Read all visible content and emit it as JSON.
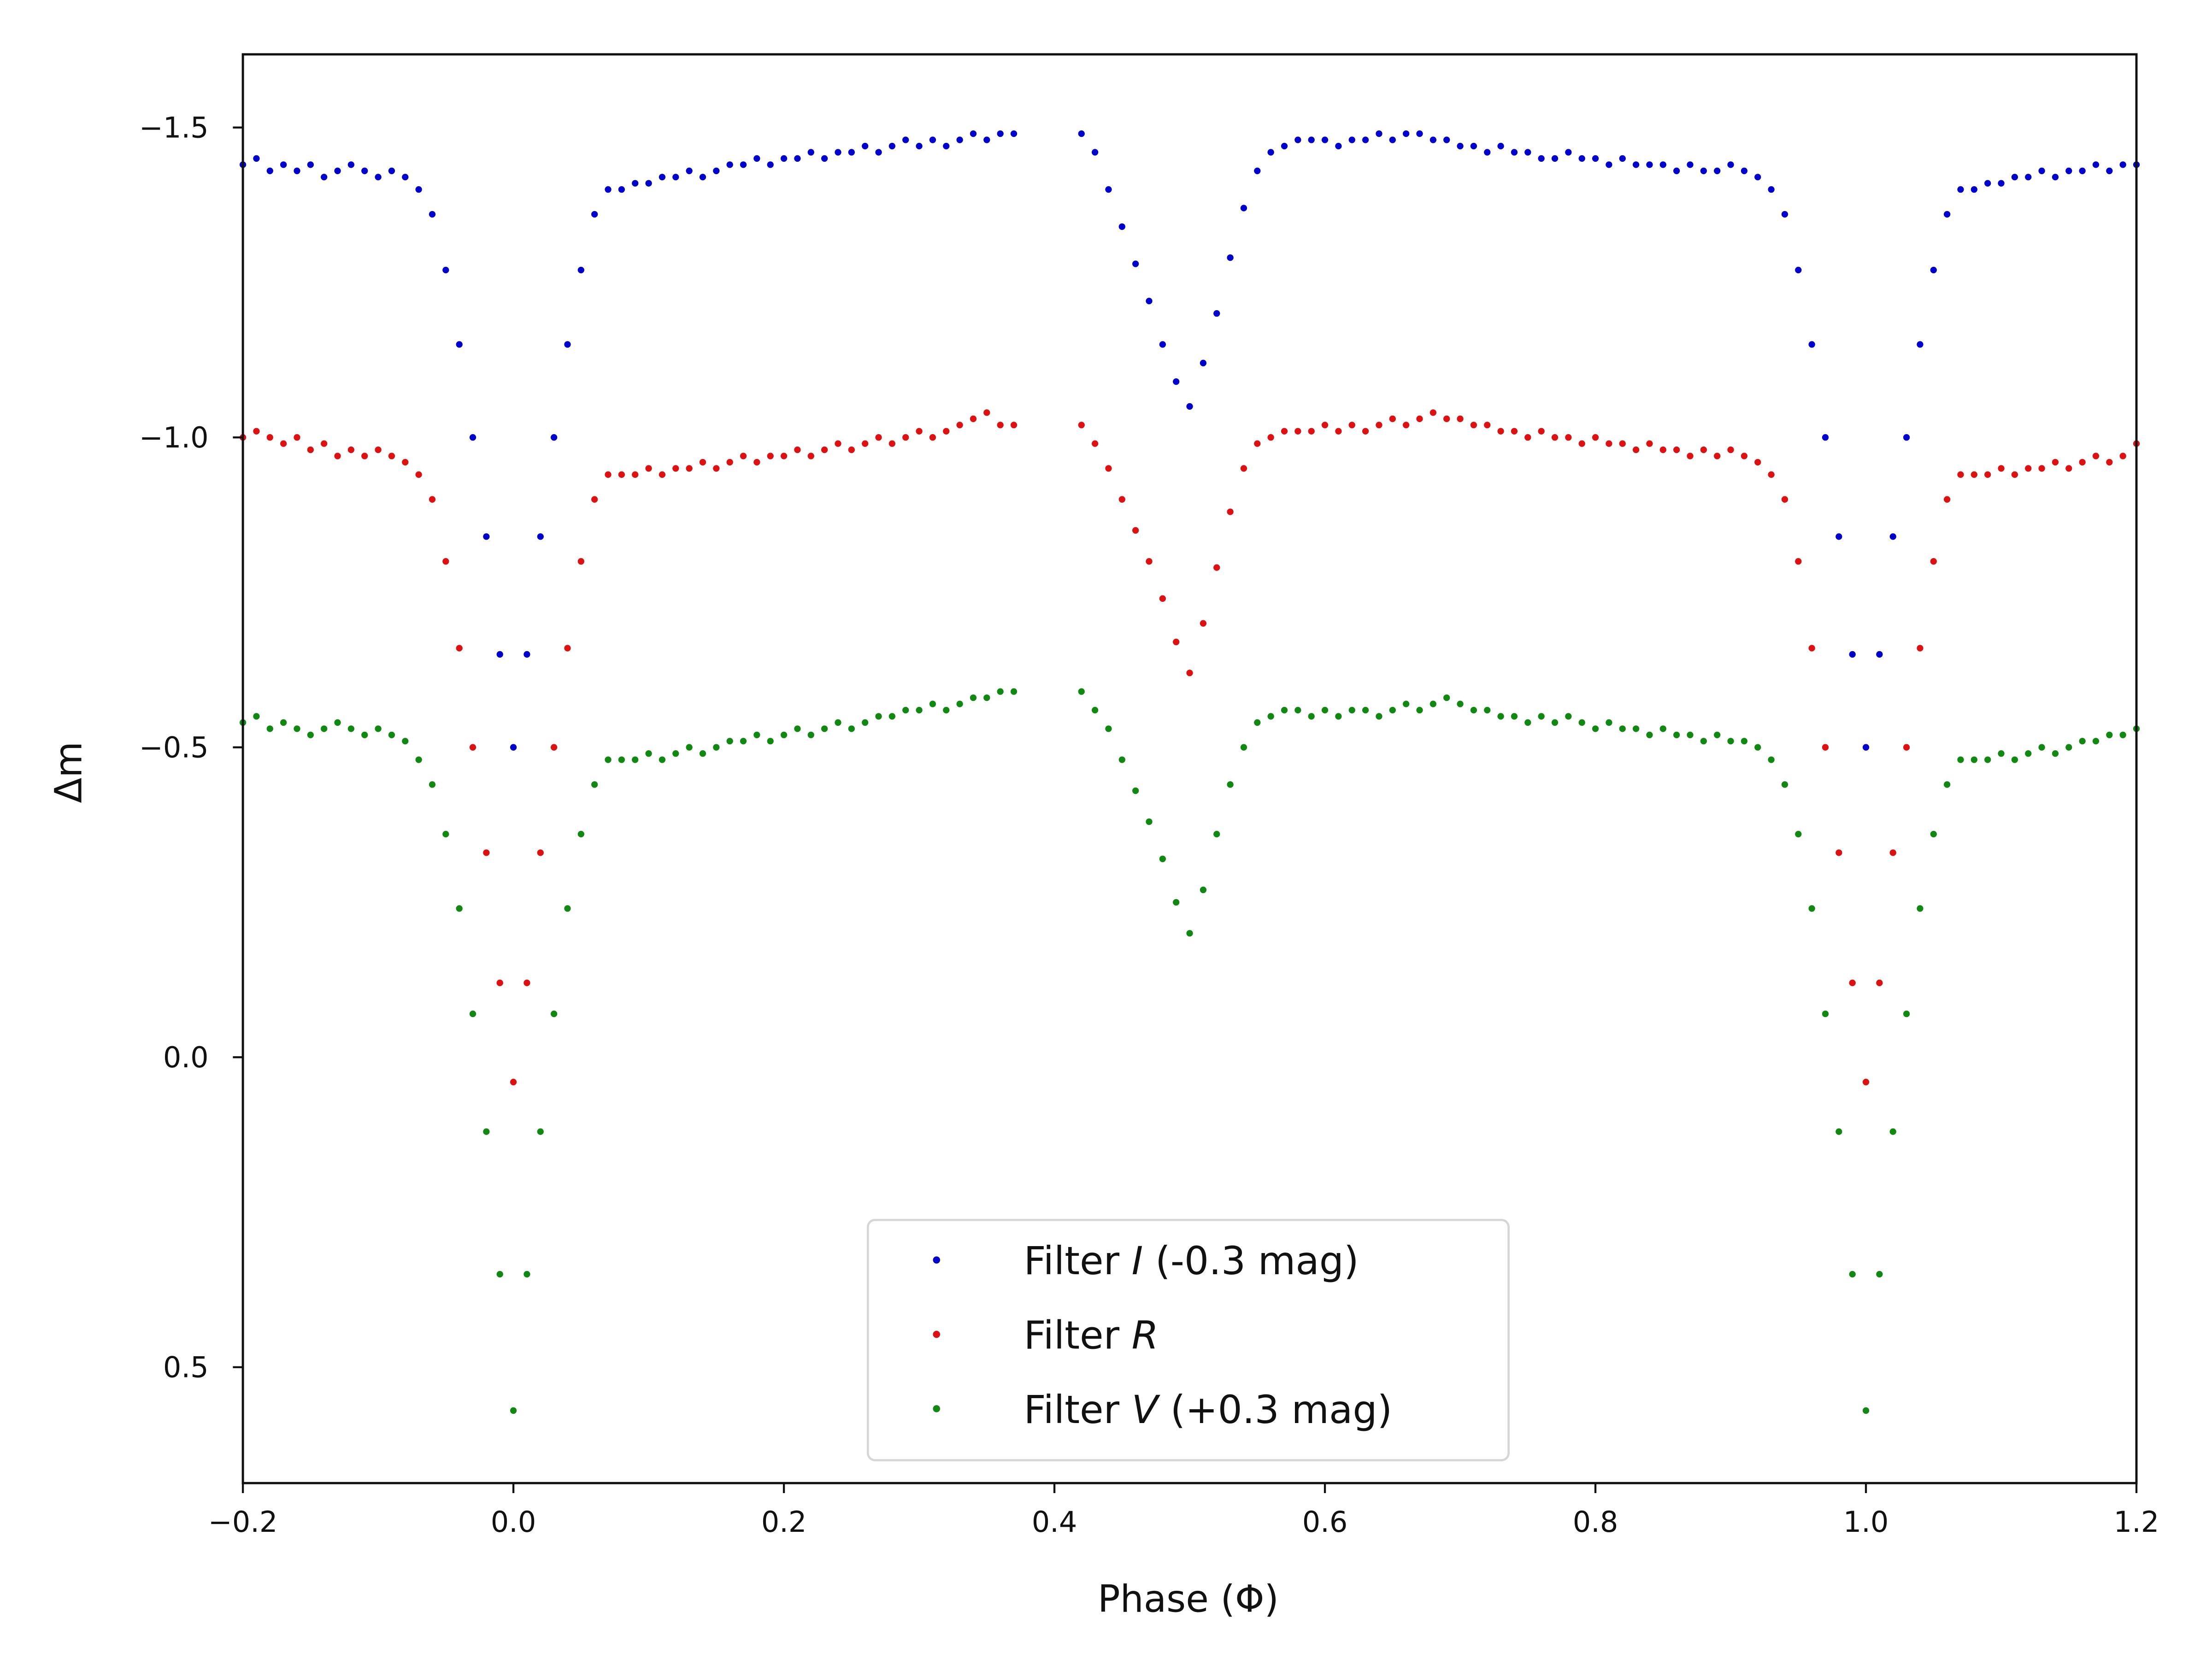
{
  "chart_data": {
    "type": "scatter",
    "title": "",
    "xlabel": "Phase (Φ)",
    "ylabel": "Δm",
    "xlim": [
      -0.2,
      1.2
    ],
    "ylim": [
      0.687,
      -1.618
    ],
    "y_inverted": true,
    "grid": false,
    "legend_position": "bottom-center",
    "xticks": [
      "−0.2",
      "0.0",
      "0.2",
      "0.4",
      "0.6",
      "0.8",
      "1.0",
      "1.2"
    ],
    "xtick_values": [
      -0.2,
      0.0,
      0.2,
      0.4,
      0.6,
      0.8,
      1.0,
      1.2
    ],
    "yticks": [
      "−1.5",
      "−1.0",
      "−0.5",
      "0.0",
      "0.5"
    ],
    "ytick_values": [
      -1.5,
      -1.0,
      -0.5,
      0.0,
      0.5
    ],
    "x": [
      -0.2,
      -0.19,
      -0.18,
      -0.17,
      -0.16,
      -0.15,
      -0.14,
      -0.13,
      -0.12,
      -0.11,
      -0.1,
      -0.09,
      -0.08,
      -0.07,
      -0.06,
      -0.05,
      -0.04,
      -0.03,
      -0.02,
      -0.01,
      0.0,
      0.01,
      0.02,
      0.03,
      0.04,
      0.05,
      0.06,
      0.07,
      0.08,
      0.09,
      0.1,
      0.11,
      0.12,
      0.13,
      0.14,
      0.15,
      0.16,
      0.17,
      0.18,
      0.19,
      0.2,
      0.21,
      0.22,
      0.23,
      0.24,
      0.25,
      0.26,
      0.27,
      0.28,
      0.29,
      0.3,
      0.31,
      0.32,
      0.33,
      0.34,
      0.35,
      0.36,
      0.37,
      0.42,
      0.43,
      0.44,
      0.45,
      0.46,
      0.47,
      0.48,
      0.49,
      0.5,
      0.51,
      0.52,
      0.53,
      0.54,
      0.55,
      0.56,
      0.57,
      0.58,
      0.59,
      0.6,
      0.61,
      0.62,
      0.63,
      0.64,
      0.65,
      0.66,
      0.67,
      0.68,
      0.69,
      0.7,
      0.71,
      0.72,
      0.73,
      0.74,
      0.75,
      0.76,
      0.77,
      0.78,
      0.79,
      0.8,
      0.81,
      0.82,
      0.83,
      0.84,
      0.85,
      0.86,
      0.87,
      0.88,
      0.89,
      0.9,
      0.91,
      0.92,
      0.93,
      0.94,
      0.95,
      0.96,
      0.97,
      0.98,
      0.99,
      1.0,
      1.01,
      1.02,
      1.03,
      1.04,
      1.05,
      1.06,
      1.07,
      1.08,
      1.09,
      1.1,
      1.11,
      1.12,
      1.13,
      1.14,
      1.15,
      1.16,
      1.17,
      1.18,
      1.19,
      1.2
    ],
    "series": [
      {
        "legend": {
          "prefix": "Filter ",
          "letter": "I",
          "suffix": " (-0.3 mag)"
        },
        "color": "#0000cc",
        "values": [
          -1.44,
          -1.45,
          -1.43,
          -1.44,
          -1.43,
          -1.44,
          -1.42,
          -1.43,
          -1.44,
          -1.43,
          -1.42,
          -1.43,
          -1.42,
          -1.4,
          -1.36,
          -1.27,
          -1.15,
          -1.0,
          -0.84,
          -0.65,
          -0.5,
          -0.65,
          -0.84,
          -1.0,
          -1.15,
          -1.27,
          -1.36,
          -1.4,
          -1.4,
          -1.41,
          -1.41,
          -1.42,
          -1.42,
          -1.43,
          -1.42,
          -1.43,
          -1.44,
          -1.44,
          -1.45,
          -1.44,
          -1.45,
          -1.45,
          -1.46,
          -1.45,
          -1.46,
          -1.46,
          -1.47,
          -1.46,
          -1.47,
          -1.48,
          -1.47,
          -1.48,
          -1.47,
          -1.48,
          -1.49,
          -1.48,
          -1.49,
          -1.49,
          -1.49,
          -1.46,
          -1.4,
          -1.34,
          -1.28,
          -1.22,
          -1.15,
          -1.09,
          -1.05,
          -1.12,
          -1.2,
          -1.29,
          -1.37,
          -1.43,
          -1.46,
          -1.47,
          -1.48,
          -1.48,
          -1.48,
          -1.47,
          -1.48,
          -1.48,
          -1.49,
          -1.48,
          -1.49,
          -1.49,
          -1.48,
          -1.48,
          -1.47,
          -1.47,
          -1.46,
          -1.47,
          -1.46,
          -1.46,
          -1.45,
          -1.45,
          -1.46,
          -1.45,
          -1.45,
          -1.44,
          -1.45,
          -1.44,
          -1.44,
          -1.44,
          -1.43,
          -1.44,
          -1.43,
          -1.43,
          -1.44,
          -1.43,
          -1.42,
          -1.4,
          -1.36,
          -1.27,
          -1.15,
          -1.0,
          -0.84,
          -0.65,
          -0.5,
          -0.65,
          -0.84,
          -1.0,
          -1.15,
          -1.27,
          -1.36,
          -1.4,
          -1.4,
          -1.41,
          -1.41,
          -1.42,
          -1.42,
          -1.43,
          -1.42,
          -1.43,
          -1.43,
          -1.44,
          -1.43,
          -1.44,
          -1.44
        ]
      },
      {
        "legend": {
          "prefix": "Filter ",
          "letter": "R",
          "suffix": ""
        },
        "color": "#dd1111",
        "values": [
          -1.0,
          -1.01,
          -1.0,
          -0.99,
          -1.0,
          -0.98,
          -0.99,
          -0.97,
          -0.98,
          -0.97,
          -0.98,
          -0.97,
          -0.96,
          -0.94,
          -0.9,
          -0.8,
          -0.66,
          -0.5,
          -0.33,
          -0.12,
          0.04,
          -0.12,
          -0.33,
          -0.5,
          -0.66,
          -0.8,
          -0.9,
          -0.94,
          -0.94,
          -0.94,
          -0.95,
          -0.94,
          -0.95,
          -0.95,
          -0.96,
          -0.95,
          -0.96,
          -0.97,
          -0.96,
          -0.97,
          -0.97,
          -0.98,
          -0.97,
          -0.98,
          -0.99,
          -0.98,
          -0.99,
          -1.0,
          -0.99,
          -1.0,
          -1.01,
          -1.0,
          -1.01,
          -1.02,
          -1.03,
          -1.04,
          -1.02,
          -1.02,
          -1.02,
          -0.99,
          -0.95,
          -0.9,
          -0.85,
          -0.8,
          -0.74,
          -0.67,
          -0.62,
          -0.7,
          -0.79,
          -0.88,
          -0.95,
          -0.99,
          -1.0,
          -1.01,
          -1.01,
          -1.01,
          -1.02,
          -1.01,
          -1.02,
          -1.01,
          -1.02,
          -1.03,
          -1.02,
          -1.03,
          -1.04,
          -1.03,
          -1.03,
          -1.02,
          -1.02,
          -1.01,
          -1.01,
          -1.0,
          -1.01,
          -1.0,
          -1.0,
          -0.99,
          -1.0,
          -0.99,
          -0.99,
          -0.98,
          -0.99,
          -0.98,
          -0.98,
          -0.97,
          -0.98,
          -0.97,
          -0.98,
          -0.97,
          -0.96,
          -0.94,
          -0.9,
          -0.8,
          -0.66,
          -0.5,
          -0.33,
          -0.12,
          0.04,
          -0.12,
          -0.33,
          -0.5,
          -0.66,
          -0.8,
          -0.9,
          -0.94,
          -0.94,
          -0.94,
          -0.95,
          -0.94,
          -0.95,
          -0.95,
          -0.96,
          -0.95,
          -0.96,
          -0.97,
          -0.96,
          -0.97,
          -0.99
        ]
      },
      {
        "legend": {
          "prefix": "Filter ",
          "letter": "V",
          "suffix": " (+0.3 mag)"
        },
        "color": "#118811",
        "values": [
          -0.54,
          -0.55,
          -0.53,
          -0.54,
          -0.53,
          -0.52,
          -0.53,
          -0.54,
          -0.53,
          -0.52,
          -0.53,
          -0.52,
          -0.51,
          -0.48,
          -0.44,
          -0.36,
          -0.24,
          -0.07,
          0.12,
          0.35,
          0.57,
          0.35,
          0.12,
          -0.07,
          -0.24,
          -0.36,
          -0.44,
          -0.48,
          -0.48,
          -0.48,
          -0.49,
          -0.48,
          -0.49,
          -0.5,
          -0.49,
          -0.5,
          -0.51,
          -0.51,
          -0.52,
          -0.51,
          -0.52,
          -0.53,
          -0.52,
          -0.53,
          -0.54,
          -0.53,
          -0.54,
          -0.55,
          -0.55,
          -0.56,
          -0.56,
          -0.57,
          -0.56,
          -0.57,
          -0.58,
          -0.58,
          -0.59,
          -0.59,
          -0.59,
          -0.56,
          -0.53,
          -0.48,
          -0.43,
          -0.38,
          -0.32,
          -0.25,
          -0.2,
          -0.27,
          -0.36,
          -0.44,
          -0.5,
          -0.54,
          -0.55,
          -0.56,
          -0.56,
          -0.55,
          -0.56,
          -0.55,
          -0.56,
          -0.56,
          -0.55,
          -0.56,
          -0.57,
          -0.56,
          -0.57,
          -0.58,
          -0.57,
          -0.56,
          -0.56,
          -0.55,
          -0.55,
          -0.54,
          -0.55,
          -0.54,
          -0.55,
          -0.54,
          -0.53,
          -0.54,
          -0.53,
          -0.53,
          -0.52,
          -0.53,
          -0.52,
          -0.52,
          -0.51,
          -0.52,
          -0.51,
          -0.51,
          -0.5,
          -0.48,
          -0.44,
          -0.36,
          -0.24,
          -0.07,
          0.12,
          0.35,
          0.57,
          0.35,
          0.12,
          -0.07,
          -0.24,
          -0.36,
          -0.44,
          -0.48,
          -0.48,
          -0.48,
          -0.49,
          -0.48,
          -0.49,
          -0.5,
          -0.49,
          -0.5,
          -0.51,
          -0.51,
          -0.52,
          -0.52,
          -0.53
        ]
      }
    ]
  }
}
